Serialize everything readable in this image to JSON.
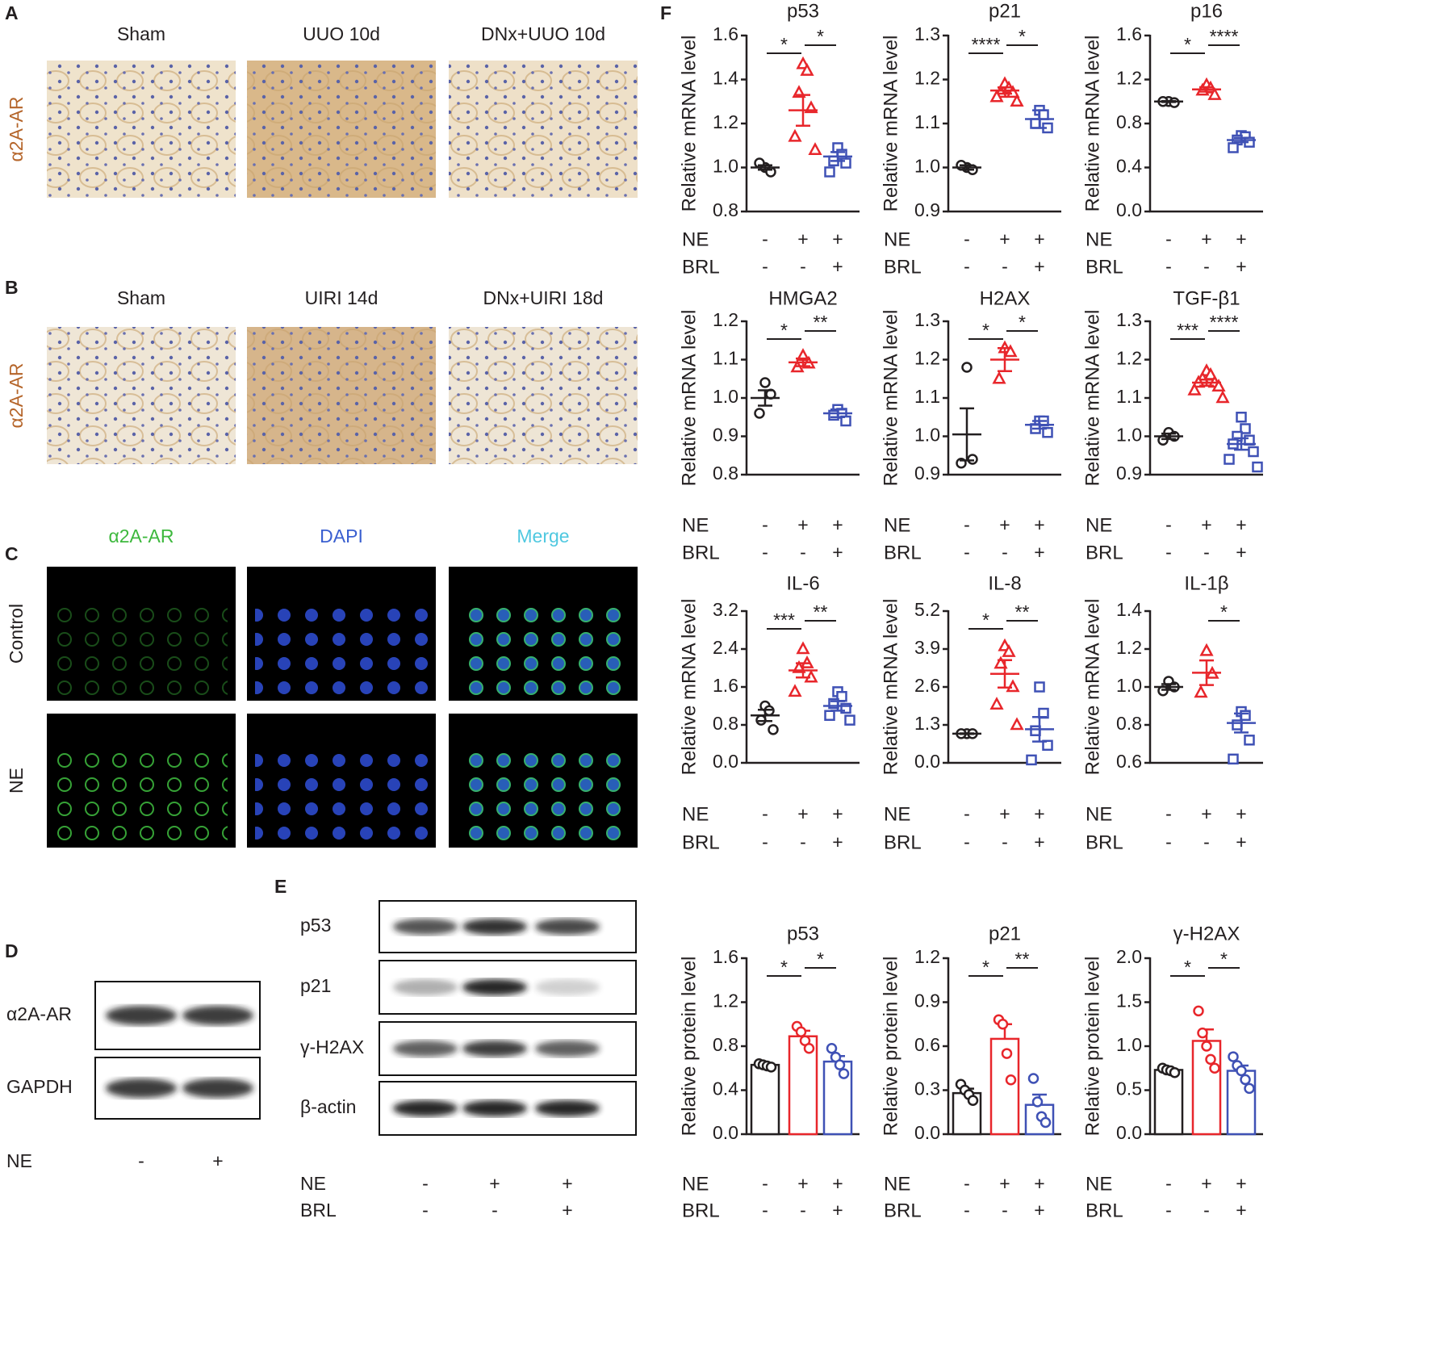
{
  "panel_labels": [
    "A",
    "B",
    "C",
    "D",
    "E",
    "F"
  ],
  "histology": [
    {
      "row_label": "α2A-AR",
      "columns": [
        "Sham",
        "UUO 10d",
        "DNx+UUO 10d"
      ]
    },
    {
      "row_label": "α2A-AR",
      "columns": [
        "Sham",
        "UIRI 14d",
        "DNx+UIRI 18d"
      ]
    }
  ],
  "immunofluorescence": {
    "columns": [
      "α2A-AR",
      "DAPI",
      "Merge"
    ],
    "rows": [
      "Control",
      "NE"
    ]
  },
  "western_d": {
    "bands": [
      "α2A-AR",
      "GAPDH"
    ],
    "condition": {
      "label": "NE",
      "values": [
        "-",
        "+"
      ]
    }
  },
  "western_e": {
    "bands": [
      "p53",
      "p21",
      "γ-H2AX",
      "β-actin"
    ],
    "conditions": [
      {
        "label": "NE",
        "values": [
          "-",
          "+",
          "+"
        ]
      },
      {
        "label": "BRL",
        "values": [
          "-",
          "-",
          "+"
        ]
      }
    ]
  },
  "chart_data": [
    {
      "type": "scatter",
      "title": "p53",
      "ylabel": "Relative mRNA level",
      "ylim": [
        0.8,
        1.6
      ],
      "yticks": [
        0.8,
        {
          "value": 1,
          "label": "1.0"
        },
        1.2,
        1.4,
        1.6
      ],
      "conditions": [
        {
          "label": "NE",
          "values": [
            "-",
            "+",
            "+"
          ]
        },
        {
          "label": "BRL",
          "values": [
            "-",
            "-",
            "+"
          ]
        }
      ],
      "groups": [
        {
          "color": "#231f20",
          "marker": "circle",
          "values": [
            1.0,
            0.98,
            1.02
          ],
          "mean": 1.0,
          "sem": 0.01
        },
        {
          "color": "#e8262b",
          "marker": "triangle",
          "values": [
            1.47,
            1.44,
            1.34,
            1.27,
            1.14,
            1.08
          ],
          "mean": 1.26,
          "sem": 0.07
        },
        {
          "color": "#3f51b5",
          "marker": "square",
          "values": [
            1.09,
            1.06,
            1.03,
            1.02,
            0.98
          ],
          "mean": 1.05,
          "sem": 0.02
        }
      ],
      "annotations": [
        {
          "text": "*",
          "pair": [
            0,
            1
          ]
        },
        {
          "text": "*",
          "pair": [
            1,
            2
          ]
        }
      ]
    },
    {
      "type": "scatter",
      "title": "p21",
      "ylabel": "Relative mRNA level",
      "ylim": [
        0.9,
        1.3
      ],
      "yticks": [
        0.9,
        {
          "value": 1,
          "label": "1.0"
        },
        1.1,
        1.2,
        1.3
      ],
      "conditions": [
        {
          "label": "NE",
          "values": [
            "-",
            "+",
            "+"
          ]
        },
        {
          "label": "BRL",
          "values": [
            "-",
            "-",
            "+"
          ]
        }
      ],
      "groups": [
        {
          "color": "#231f20",
          "marker": "circle",
          "values": [
            1.0,
            0.995,
            1.005
          ],
          "mean": 1.0,
          "sem": 0.005
        },
        {
          "color": "#e8262b",
          "marker": "triangle",
          "values": [
            1.19,
            1.18,
            1.17,
            1.17,
            1.16,
            1.15
          ],
          "mean": 1.175,
          "sem": 0.007
        },
        {
          "color": "#3f51b5",
          "marker": "square",
          "values": [
            1.13,
            1.12,
            1.1,
            1.09
          ],
          "mean": 1.11,
          "sem": 0.02
        }
      ],
      "annotations": [
        {
          "text": "****",
          "pair": [
            0,
            1
          ]
        },
        {
          "text": "*",
          "pair": [
            1,
            2
          ]
        }
      ]
    },
    {
      "type": "scatter",
      "title": "p16",
      "ylabel": "Relative mRNA level",
      "ylim": [
        0,
        1.6
      ],
      "yticks": [
        {
          "value": 0,
          "label": "0.0"
        },
        0.4,
        0.8,
        1.2,
        1.6
      ],
      "conditions": [
        {
          "label": "NE",
          "values": [
            "-",
            "+",
            "+"
          ]
        },
        {
          "label": "BRL",
          "values": [
            "-",
            "-",
            "+"
          ]
        }
      ],
      "groups": [
        {
          "color": "#231f20",
          "marker": "circle",
          "values": [
            1.0,
            0.99,
            1.0
          ],
          "mean": 1.0,
          "sem": 0.005
        },
        {
          "color": "#e8262b",
          "marker": "triangle",
          "values": [
            1.15,
            1.12,
            1.1,
            1.06
          ],
          "mean": 1.11,
          "sem": 0.02
        },
        {
          "color": "#3f51b5",
          "marker": "square",
          "values": [
            0.69,
            0.68,
            0.65,
            0.63,
            0.58
          ],
          "mean": 0.65,
          "sem": 0.02
        }
      ],
      "annotations": [
        {
          "text": "*",
          "pair": [
            0,
            1
          ]
        },
        {
          "text": "****",
          "pair": [
            1,
            2
          ]
        }
      ]
    },
    {
      "type": "scatter",
      "title": "HMGA2",
      "ylabel": "Relative mRNA level",
      "ylim": [
        0.8,
        1.2
      ],
      "yticks": [
        0.8,
        0.9,
        {
          "value": 1,
          "label": "1.0"
        },
        1.1,
        1.2
      ],
      "conditions": [
        {
          "label": "NE",
          "values": [
            "-",
            "+",
            "+"
          ]
        },
        {
          "label": "BRL",
          "values": [
            "-",
            "-",
            "+"
          ]
        }
      ],
      "groups": [
        {
          "color": "#231f20",
          "marker": "circle",
          "values": [
            1.04,
            1.01,
            0.96
          ],
          "mean": 1.0,
          "sem": 0.02
        },
        {
          "color": "#e8262b",
          "marker": "triangle",
          "values": [
            1.11,
            1.09,
            1.08
          ],
          "mean": 1.093,
          "sem": 0.01
        },
        {
          "color": "#3f51b5",
          "marker": "square",
          "values": [
            0.97,
            0.96,
            0.955,
            0.94
          ],
          "mean": 0.96,
          "sem": 0.01
        }
      ],
      "annotations": [
        {
          "text": "*",
          "pair": [
            0,
            1
          ]
        },
        {
          "text": "**",
          "pair": [
            1,
            2
          ]
        }
      ]
    },
    {
      "type": "scatter",
      "title": "H2AX",
      "ylabel": "Relative mRNA level",
      "ylim": [
        0.9,
        1.3
      ],
      "yticks": [
        0.9,
        {
          "value": 1,
          "label": "1.0"
        },
        1.1,
        1.2,
        1.3
      ],
      "conditions": [
        {
          "label": "NE",
          "values": [
            "-",
            "+",
            "+"
          ]
        },
        {
          "label": "BRL",
          "values": [
            "-",
            "-",
            "+"
          ]
        }
      ],
      "groups": [
        {
          "color": "#231f20",
          "marker": "circle",
          "values": [
            1.18,
            0.94,
            0.93
          ],
          "mean": 1.005,
          "sem": 0.068
        },
        {
          "color": "#e8262b",
          "marker": "triangle",
          "values": [
            1.23,
            1.22,
            1.15
          ],
          "mean": 1.2,
          "sem": 0.03
        },
        {
          "color": "#3f51b5",
          "marker": "square",
          "values": [
            1.04,
            1.04,
            1.02,
            1.01
          ],
          "mean": 1.03,
          "sem": 0.01
        }
      ],
      "annotations": [
        {
          "text": "*",
          "pair": [
            0,
            1
          ]
        },
        {
          "text": "*",
          "pair": [
            1,
            2
          ]
        }
      ]
    },
    {
      "type": "scatter",
      "title": "TGF-β1",
      "ylabel": "Relative mRNA level",
      "ylim": [
        0.9,
        1.3
      ],
      "yticks": [
        0.9,
        {
          "value": 1,
          "label": "1.0"
        },
        1.1,
        1.2,
        1.3
      ],
      "conditions": [
        {
          "label": "NE",
          "values": [
            "-",
            "+",
            "+"
          ]
        },
        {
          "label": "BRL",
          "values": [
            "-",
            "-",
            "+"
          ]
        }
      ],
      "groups": [
        {
          "color": "#231f20",
          "marker": "circle",
          "values": [
            1.01,
            1.0,
            0.99
          ],
          "mean": 1.0,
          "sem": 0.007
        },
        {
          "color": "#e8262b",
          "marker": "triangle",
          "values": [
            1.17,
            1.16,
            1.15,
            1.14,
            1.14,
            1.13,
            1.12,
            1.1
          ],
          "mean": 1.14,
          "sem": 0.008
        },
        {
          "color": "#3f51b5",
          "marker": "square",
          "values": [
            1.05,
            1.02,
            1.0,
            0.99,
            0.98,
            0.96,
            0.94,
            0.92
          ],
          "mean": 0.98,
          "sem": 0.015
        }
      ],
      "annotations": [
        {
          "text": "***",
          "pair": [
            0,
            1
          ]
        },
        {
          "text": "****",
          "pair": [
            1,
            2
          ]
        }
      ]
    },
    {
      "type": "scatter",
      "title": "IL-6",
      "ylabel": "Relative mRNA level",
      "ylim": [
        0,
        3.2
      ],
      "yticks": [
        {
          "value": 0,
          "label": "0.0"
        },
        0.8,
        1.6,
        2.4,
        3.2
      ],
      "conditions": [
        {
          "label": "NE",
          "values": [
            "-",
            "+",
            "+"
          ]
        },
        {
          "label": "BRL",
          "values": [
            "-",
            "-",
            "+"
          ]
        }
      ],
      "groups": [
        {
          "color": "#231f20",
          "marker": "circle",
          "values": [
            1.2,
            1.1,
            0.9,
            0.7
          ],
          "mean": 1.0,
          "sem": 0.12
        },
        {
          "color": "#e8262b",
          "marker": "triangle",
          "values": [
            2.4,
            2.1,
            2.0,
            1.8,
            1.5
          ],
          "mean": 1.95,
          "sem": 0.15
        },
        {
          "color": "#3f51b5",
          "marker": "square",
          "values": [
            1.5,
            1.4,
            1.25,
            1.15,
            1.0,
            0.9
          ],
          "mean": 1.2,
          "sem": 0.1
        }
      ],
      "annotations": [
        {
          "text": "***",
          "pair": [
            0,
            1
          ]
        },
        {
          "text": "**",
          "pair": [
            1,
            2
          ]
        }
      ]
    },
    {
      "type": "scatter",
      "title": "IL-8",
      "ylabel": "Relative mRNA level",
      "ylim": [
        0,
        5.2
      ],
      "yticks": [
        {
          "value": 0,
          "label": "0.0"
        },
        1.3,
        2.6,
        3.9,
        5.2
      ],
      "conditions": [
        {
          "label": "NE",
          "values": [
            "-",
            "+",
            "+"
          ]
        },
        {
          "label": "BRL",
          "values": [
            "-",
            "-",
            "+"
          ]
        }
      ],
      "groups": [
        {
          "color": "#231f20",
          "marker": "circle",
          "values": [
            1.0,
            1.0,
            1.0
          ],
          "mean": 1.0,
          "sem": 0.01
        },
        {
          "color": "#e8262b",
          "marker": "triangle",
          "values": [
            4.0,
            3.8,
            3.4,
            2.6,
            2.0,
            1.3
          ],
          "mean": 3.05,
          "sem": 0.47
        },
        {
          "color": "#3f51b5",
          "marker": "square",
          "values": [
            2.6,
            1.7,
            1.1,
            0.6,
            0.1
          ],
          "mean": 1.15,
          "sem": 0.42
        }
      ],
      "annotations": [
        {
          "text": "*",
          "pair": [
            0,
            1
          ]
        },
        {
          "text": "**",
          "pair": [
            1,
            2
          ]
        }
      ]
    },
    {
      "type": "scatter",
      "title": "IL-1β",
      "ylabel": "Relative mRNA level",
      "ylim": [
        0.6,
        1.4
      ],
      "yticks": [
        0.6,
        0.8,
        {
          "value": 1,
          "label": "1.0"
        },
        1.2,
        1.4
      ],
      "conditions": [
        {
          "label": "NE",
          "values": [
            "-",
            "+",
            "+"
          ]
        },
        {
          "label": "BRL",
          "values": [
            "-",
            "-",
            "+"
          ]
        }
      ],
      "groups": [
        {
          "color": "#231f20",
          "marker": "circle",
          "values": [
            1.03,
            1.0,
            0.98
          ],
          "mean": 1.0,
          "sem": 0.015
        },
        {
          "color": "#e8262b",
          "marker": "triangle",
          "values": [
            1.19,
            1.07,
            0.97
          ],
          "mean": 1.075,
          "sem": 0.065
        },
        {
          "color": "#3f51b5",
          "marker": "square",
          "values": [
            0.87,
            0.85,
            0.8,
            0.72,
            0.62
          ],
          "mean": 0.81,
          "sem": 0.05
        }
      ],
      "annotations": [
        {
          "text": "*",
          "pair": [
            1,
            2
          ]
        }
      ]
    },
    {
      "type": "bar",
      "title": "p53",
      "ylabel": "Relative protein level",
      "ylim": [
        0,
        1.6
      ],
      "yticks": [
        {
          "value": 0,
          "label": "0.0"
        },
        0.4,
        0.8,
        1.2,
        1.6
      ],
      "conditions": [
        {
          "label": "NE",
          "values": [
            "-",
            "+",
            "+"
          ]
        },
        {
          "label": "BRL",
          "values": [
            "-",
            "-",
            "+"
          ]
        }
      ],
      "groups": [
        {
          "color": "#231f20",
          "marker": "circle",
          "values": [
            0.64,
            0.63,
            0.62,
            0.61
          ],
          "mean": 0.63,
          "sem": 0.01
        },
        {
          "color": "#e8262b",
          "marker": "circle",
          "values": [
            0.98,
            0.93,
            0.85,
            0.78
          ],
          "mean": 0.89,
          "sem": 0.05
        },
        {
          "color": "#3f51b5",
          "marker": "circle",
          "values": [
            0.78,
            0.7,
            0.63,
            0.55
          ],
          "mean": 0.66,
          "sem": 0.05
        }
      ],
      "annotations": [
        {
          "text": "*",
          "pair": [
            0,
            1
          ]
        },
        {
          "text": "*",
          "pair": [
            1,
            2
          ]
        }
      ]
    },
    {
      "type": "bar",
      "title": "p21",
      "ylabel": "Relative protein level",
      "ylim": [
        0,
        1.2
      ],
      "yticks": [
        {
          "value": 0,
          "label": "0.0"
        },
        0.3,
        0.6,
        0.9,
        1.2
      ],
      "conditions": [
        {
          "label": "NE",
          "values": [
            "-",
            "+",
            "+"
          ]
        },
        {
          "label": "BRL",
          "values": [
            "-",
            "-",
            "+"
          ]
        }
      ],
      "groups": [
        {
          "color": "#231f20",
          "marker": "circle",
          "values": [
            0.34,
            0.3,
            0.27,
            0.23
          ],
          "mean": 0.28,
          "sem": 0.03
        },
        {
          "color": "#e8262b",
          "marker": "circle",
          "values": [
            0.78,
            0.75,
            0.55,
            0.37
          ],
          "mean": 0.65,
          "sem": 0.1
        },
        {
          "color": "#3f51b5",
          "marker": "circle",
          "values": [
            0.38,
            0.22,
            0.12,
            0.08
          ],
          "mean": 0.2,
          "sem": 0.07
        }
      ],
      "annotations": [
        {
          "text": "*",
          "pair": [
            0,
            1
          ]
        },
        {
          "text": "**",
          "pair": [
            1,
            2
          ]
        }
      ]
    },
    {
      "type": "bar",
      "title": "γ-H2AX",
      "ylabel": "Relative protein level",
      "ylim": [
        0,
        2.0
      ],
      "yticks": [
        {
          "value": 0,
          "label": "0.0"
        },
        0.5,
        {
          "value": 1,
          "label": "1.0"
        },
        1.5,
        {
          "value": 2,
          "label": "2.0"
        }
      ],
      "conditions": [
        {
          "label": "NE",
          "values": [
            "-",
            "+",
            "+"
          ]
        },
        {
          "label": "BRL",
          "values": [
            "-",
            "-",
            "+"
          ]
        }
      ],
      "groups": [
        {
          "color": "#231f20",
          "marker": "circle",
          "values": [
            0.75,
            0.73,
            0.72,
            0.7
          ],
          "mean": 0.73,
          "sem": 0.01
        },
        {
          "color": "#e8262b",
          "marker": "circle",
          "values": [
            1.4,
            1.15,
            1.0,
            0.85,
            0.75
          ],
          "mean": 1.06,
          "sem": 0.13
        },
        {
          "color": "#3f51b5",
          "marker": "circle",
          "values": [
            0.88,
            0.78,
            0.72,
            0.62,
            0.52
          ],
          "mean": 0.72,
          "sem": 0.06
        }
      ],
      "annotations": [
        {
          "text": "*",
          "pair": [
            0,
            1
          ]
        },
        {
          "text": "*",
          "pair": [
            1,
            2
          ]
        }
      ]
    }
  ]
}
